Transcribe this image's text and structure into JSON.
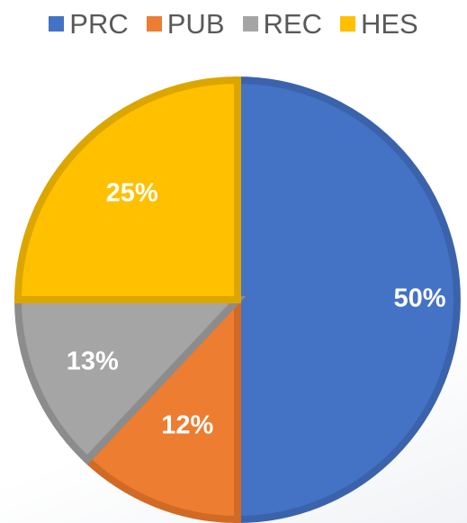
{
  "chart_data": {
    "type": "pie",
    "title": "",
    "legend_position": "top",
    "slices": [
      {
        "name": "PRC",
        "value": 50,
        "label": "50%",
        "color": "#4472C4",
        "border": "#3A63AC"
      },
      {
        "name": "PUB",
        "value": 12,
        "label": "12%",
        "color": "#ED7D31",
        "border": "#D06A24"
      },
      {
        "name": "REC",
        "value": 13,
        "label": "13%",
        "color": "#A5A5A5",
        "border": "#8C8C8C"
      },
      {
        "name": "HES",
        "value": 25,
        "label": "25%",
        "color": "#FFC000",
        "border": "#DCA600"
      }
    ]
  }
}
